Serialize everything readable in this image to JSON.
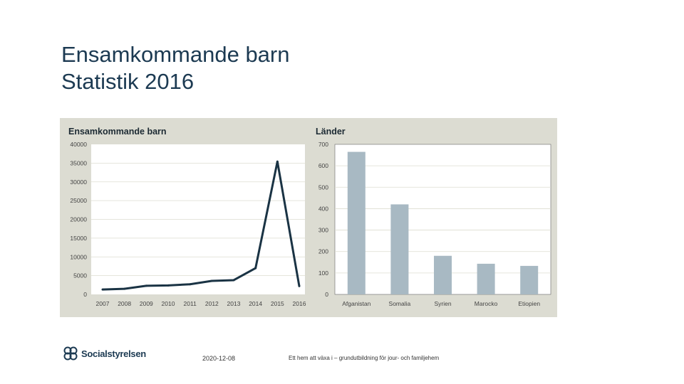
{
  "slide": {
    "title_line1": "Ensamkommande barn",
    "title_line2": "Statistik 2016"
  },
  "footer": {
    "logo_text": "Socialstyrelsen",
    "date": "2020-12-08",
    "course": "Ett hem att växa i – grundutbildning för jour- och familjehem"
  },
  "chart_data": [
    {
      "type": "line",
      "title": "Ensamkommande barn",
      "x": [
        "2007",
        "2008",
        "2009",
        "2010",
        "2011",
        "2012",
        "2013",
        "2014",
        "2015",
        "2016"
      ],
      "values": [
        1300,
        1500,
        2300,
        2400,
        2700,
        3600,
        3800,
        7000,
        35400,
        2200
      ],
      "ylim": [
        0,
        40000
      ],
      "yticks": [
        0,
        5000,
        10000,
        15000,
        20000,
        25000,
        30000,
        35000,
        40000
      ],
      "grid": true,
      "colors": {
        "line": "#1a3344",
        "gridline": "#ddddd0"
      }
    },
    {
      "type": "bar",
      "title": "Länder",
      "categories": [
        "Afganistan",
        "Somalia",
        "Syrien",
        "Marocko",
        "Etiopien"
      ],
      "values": [
        665,
        420,
        180,
        143,
        133
      ],
      "ylim": [
        0,
        700
      ],
      "yticks": [
        0,
        100,
        200,
        300,
        400,
        500,
        600,
        700
      ],
      "grid": true,
      "colors": {
        "bar": "#a8b9c3",
        "gridline": "#ddddd0"
      }
    }
  ]
}
